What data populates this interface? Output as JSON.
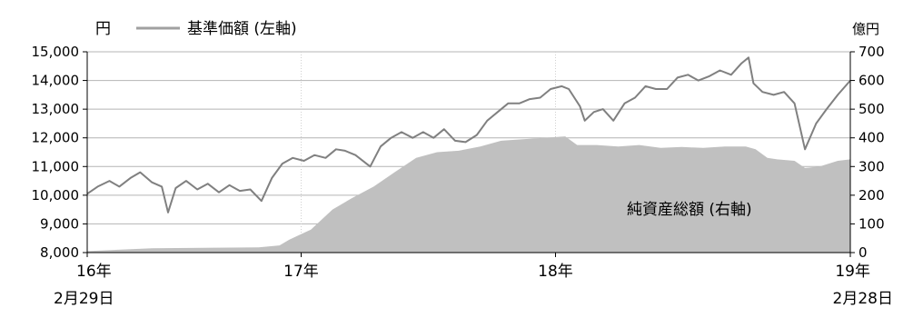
{
  "chart_data": {
    "type": "line",
    "left_unit": "円",
    "right_unit": "億円",
    "left_axis": {
      "min": 8000,
      "max": 15000,
      "ticks": [
        "8,000",
        "9,000",
        "10,000",
        "11,000",
        "12,000",
        "13,000",
        "14,000",
        "15,000"
      ]
    },
    "right_axis": {
      "min": 0,
      "max": 700,
      "ticks": [
        "0",
        "100",
        "200",
        "300",
        "400",
        "500",
        "600",
        "700"
      ]
    },
    "x_range": [
      "2016-02-29",
      "2019-02-28"
    ],
    "x_ticks": [
      {
        "date": "2016-02-29",
        "line1": "16年",
        "line2": "2月29日"
      },
      {
        "date": "2017-01-01",
        "line1": "17年",
        "line2": ""
      },
      {
        "date": "2018-01-01",
        "line1": "18年",
        "line2": ""
      },
      {
        "date": "2019-02-28",
        "line1": "19年",
        "line2": "2月28日"
      }
    ],
    "grid": true,
    "series": [
      {
        "name": "基準価額（左軸）",
        "axis": "left",
        "kind": "line",
        "color": "#808080",
        "legend_label": "基準価額 (左軸)",
        "points": [
          [
            "2016-02-29",
            10050
          ],
          [
            "2016-03-15",
            10300
          ],
          [
            "2016-04-01",
            10500
          ],
          [
            "2016-04-15",
            10300
          ],
          [
            "2016-05-01",
            10600
          ],
          [
            "2016-05-15",
            10800
          ],
          [
            "2016-06-01",
            10450
          ],
          [
            "2016-06-15",
            10300
          ],
          [
            "2016-06-24",
            9400
          ],
          [
            "2016-07-05",
            10250
          ],
          [
            "2016-07-20",
            10500
          ],
          [
            "2016-08-05",
            10200
          ],
          [
            "2016-08-20",
            10400
          ],
          [
            "2016-09-05",
            10100
          ],
          [
            "2016-09-20",
            10350
          ],
          [
            "2016-10-05",
            10150
          ],
          [
            "2016-10-20",
            10200
          ],
          [
            "2016-11-05",
            9800
          ],
          [
            "2016-11-20",
            10600
          ],
          [
            "2016-12-05",
            11100
          ],
          [
            "2016-12-20",
            11300
          ],
          [
            "2017-01-05",
            11200
          ],
          [
            "2017-01-20",
            11400
          ],
          [
            "2017-02-05",
            11300
          ],
          [
            "2017-02-20",
            11600
          ],
          [
            "2017-03-05",
            11550
          ],
          [
            "2017-03-20",
            11400
          ],
          [
            "2017-04-10",
            11000
          ],
          [
            "2017-04-25",
            11700
          ],
          [
            "2017-05-10",
            12000
          ],
          [
            "2017-05-25",
            12200
          ],
          [
            "2017-06-10",
            12000
          ],
          [
            "2017-06-25",
            12200
          ],
          [
            "2017-07-10",
            12000
          ],
          [
            "2017-07-25",
            12300
          ],
          [
            "2017-08-10",
            11900
          ],
          [
            "2017-08-25",
            11850
          ],
          [
            "2017-09-10",
            12100
          ],
          [
            "2017-09-25",
            12600
          ],
          [
            "2017-10-10",
            12900
          ],
          [
            "2017-10-25",
            13200
          ],
          [
            "2017-11-10",
            13200
          ],
          [
            "2017-11-25",
            13350
          ],
          [
            "2017-12-10",
            13400
          ],
          [
            "2017-12-25",
            13700
          ],
          [
            "2018-01-10",
            13800
          ],
          [
            "2018-01-20",
            13700
          ],
          [
            "2018-02-05",
            13100
          ],
          [
            "2018-02-12",
            12600
          ],
          [
            "2018-02-25",
            12900
          ],
          [
            "2018-03-10",
            13000
          ],
          [
            "2018-03-25",
            12600
          ],
          [
            "2018-04-10",
            13200
          ],
          [
            "2018-04-25",
            13400
          ],
          [
            "2018-05-10",
            13800
          ],
          [
            "2018-05-25",
            13700
          ],
          [
            "2018-06-10",
            13700
          ],
          [
            "2018-06-25",
            14100
          ],
          [
            "2018-07-10",
            14200
          ],
          [
            "2018-07-25",
            14000
          ],
          [
            "2018-08-10",
            14150
          ],
          [
            "2018-08-25",
            14350
          ],
          [
            "2018-09-10",
            14200
          ],
          [
            "2018-09-25",
            14600
          ],
          [
            "2018-10-05",
            14800
          ],
          [
            "2018-10-12",
            13900
          ],
          [
            "2018-10-25",
            13600
          ],
          [
            "2018-11-10",
            13500
          ],
          [
            "2018-11-25",
            13600
          ],
          [
            "2018-12-10",
            13200
          ],
          [
            "2018-12-25",
            11600
          ],
          [
            "2019-01-10",
            12500
          ],
          [
            "2019-01-25",
            13000
          ],
          [
            "2019-02-10",
            13500
          ],
          [
            "2019-02-28",
            14000
          ]
        ]
      },
      {
        "name": "純資産総額（右軸）",
        "axis": "right",
        "kind": "area",
        "color": "#c0c0c0",
        "area_label": "純資産総額 (右軸)",
        "points": [
          [
            "2016-02-29",
            5
          ],
          [
            "2016-06-01",
            15
          ],
          [
            "2016-09-01",
            17
          ],
          [
            "2016-11-01",
            18
          ],
          [
            "2016-12-01",
            25
          ],
          [
            "2016-12-15",
            45
          ],
          [
            "2017-01-15",
            80
          ],
          [
            "2017-02-15",
            150
          ],
          [
            "2017-03-15",
            190
          ],
          [
            "2017-04-15",
            230
          ],
          [
            "2017-05-15",
            280
          ],
          [
            "2017-06-15",
            330
          ],
          [
            "2017-07-15",
            350
          ],
          [
            "2017-08-15",
            355
          ],
          [
            "2017-09-15",
            370
          ],
          [
            "2017-10-15",
            390
          ],
          [
            "2017-11-15",
            395
          ],
          [
            "2017-12-15",
            400
          ],
          [
            "2018-01-15",
            405
          ],
          [
            "2018-02-01",
            375
          ],
          [
            "2018-03-01",
            375
          ],
          [
            "2018-04-01",
            370
          ],
          [
            "2018-05-01",
            375
          ],
          [
            "2018-06-01",
            365
          ],
          [
            "2018-07-01",
            368
          ],
          [
            "2018-08-01",
            365
          ],
          [
            "2018-09-01",
            370
          ],
          [
            "2018-10-01",
            370
          ],
          [
            "2018-10-15",
            360
          ],
          [
            "2018-11-01",
            330
          ],
          [
            "2018-11-15",
            325
          ],
          [
            "2018-12-10",
            320
          ],
          [
            "2018-12-25",
            295
          ],
          [
            "2019-01-15",
            300
          ],
          [
            "2019-02-10",
            320
          ],
          [
            "2019-02-28",
            325
          ]
        ]
      }
    ]
  }
}
